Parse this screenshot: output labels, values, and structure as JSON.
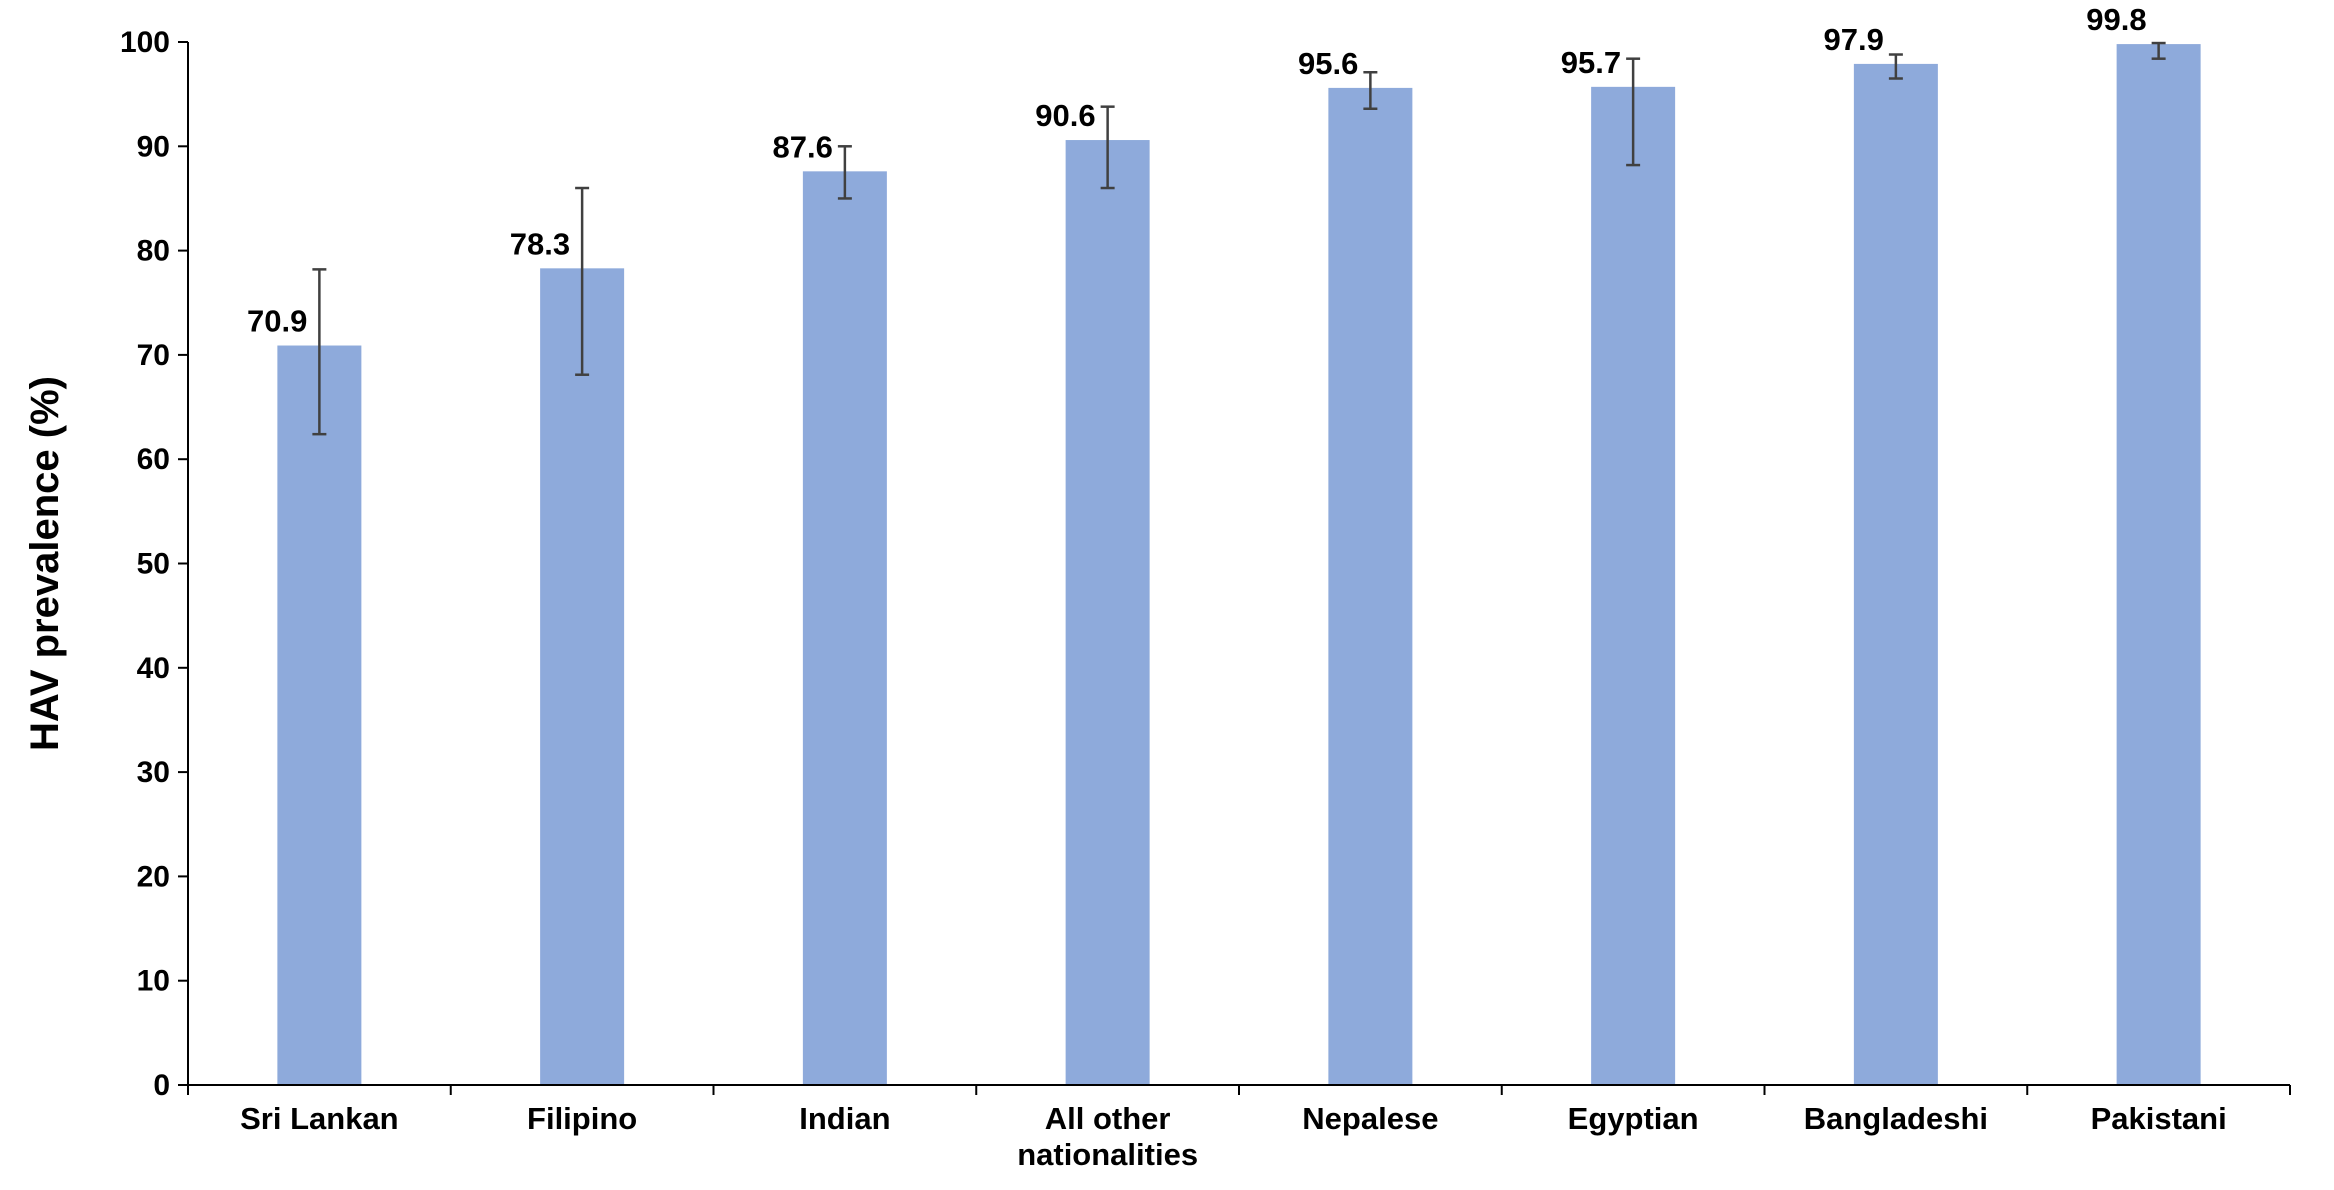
{
  "chart_data": {
    "type": "bar",
    "title": "",
    "xlabel": "",
    "ylabel": "HAV prevalence (%)",
    "ylim": [
      0,
      100
    ],
    "yticks": [
      0,
      10,
      20,
      30,
      40,
      50,
      60,
      70,
      80,
      90,
      100
    ],
    "grid": false,
    "legend": "none",
    "categories": [
      [
        "Sri Lankan"
      ],
      [
        "Filipino"
      ],
      [
        "Indian"
      ],
      [
        "All other",
        "nationalities"
      ],
      [
        "Nepalese"
      ],
      [
        "Egyptian"
      ],
      [
        "Bangladeshi"
      ],
      [
        "Pakistani"
      ]
    ],
    "values": [
      70.9,
      78.3,
      87.6,
      90.6,
      95.6,
      95.7,
      97.9,
      99.8
    ],
    "value_labels": [
      "70.9",
      "78.3",
      "87.6",
      "90.6",
      "95.6",
      "95.7",
      "97.9",
      "99.8"
    ],
    "error_low": [
      62.4,
      68.1,
      85.0,
      86.0,
      93.6,
      88.2,
      96.5,
      98.4
    ],
    "error_high": [
      78.2,
      86.0,
      90.0,
      93.8,
      97.1,
      98.4,
      98.8,
      99.9
    ],
    "colors": {
      "bar": "#8eaadb",
      "error_bar": "#404040",
      "axis": "#000000"
    }
  }
}
